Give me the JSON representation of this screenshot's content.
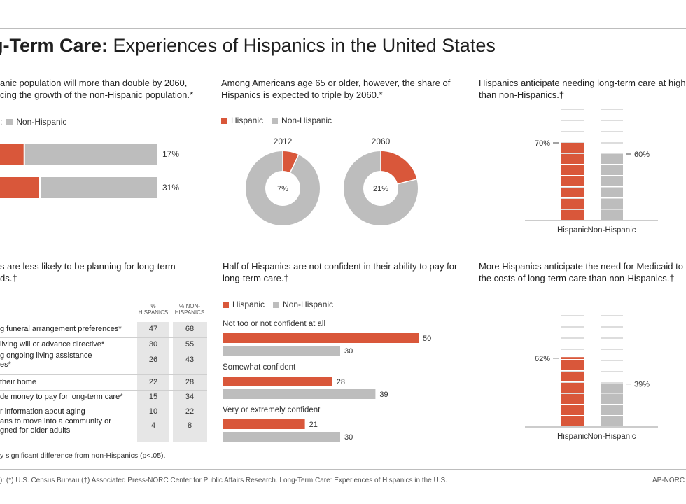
{
  "title": {
    "bold": "g-Term Care:",
    "rest": " Experiences of Hispanics in the United States"
  },
  "colors": {
    "hispanic": "#d9573a",
    "non_hispanic": "#bdbdbd"
  },
  "panel1": {
    "desc": [
      "anic population will more than double by 2060,",
      "cing the growth of the non-Hispanic population.*"
    ],
    "legend_partial": ":",
    "legend_nonhisp": "Non-Hispanic"
  },
  "panel2": {
    "desc": [
      "Among Americans age 65 or older, however, the share of",
      "Hispanics is expected to triple by 2060.*"
    ],
    "legend_hisp": "Hispanic",
    "legend_nonhisp": "Non-Hispanic"
  },
  "panel3": {
    "desc": [
      "Hispanics anticipate needing long-term care at highe",
      "than non-Hispanics.†"
    ]
  },
  "panel4": {
    "desc": [
      "s are less likely to be planning for long-term",
      "ds.†"
    ],
    "col1": [
      "%",
      "HISPANICS"
    ],
    "col2": [
      "% NON-",
      "HISPANICS"
    ],
    "rows": [
      {
        "text": [
          "g funeral arrangement preferences*"
        ],
        "h": "47",
        "n": "68"
      },
      {
        "text": [
          "living will or advance directive*"
        ],
        "h": "30",
        "n": "55"
      },
      {
        "text": [
          "g ongoing living assistance",
          "es*"
        ],
        "h": "26",
        "n": "43"
      },
      {
        "text": [
          "their home"
        ],
        "h": "22",
        "n": "28"
      },
      {
        "text": [
          "de money to pay for long-term care*"
        ],
        "h": "15",
        "n": "34"
      },
      {
        "text": [
          "r information about aging"
        ],
        "h": "10",
        "n": "22"
      },
      {
        "text": [
          "ans to move into a community or",
          "gned for older adults"
        ],
        "h": "4",
        "n": "8"
      }
    ],
    "note": "y significant difference from non-Hispanics (p<.05)."
  },
  "panel5": {
    "desc": [
      "Half of Hispanics are not confident in their ability to pay for",
      "long-term care.†"
    ],
    "legend_hisp": "Hispanic",
    "legend_nonhisp": "Non-Hispanic"
  },
  "panel6": {
    "desc": [
      "More Hispanics anticipate the need for Medicaid to c",
      "the costs of long-term care than non-Hispanics.†"
    ]
  },
  "footer": {
    "source": "): (*) U.S. Census Bureau   (†) Associated Press-NORC Center for Public Affairs Research. Long-Term Care: Experiences of Hispanics in the U.S.",
    "credit": "AP-NORC"
  },
  "chart_data": [
    {
      "type": "bar",
      "orientation": "horizontal",
      "stacked": true,
      "note": "Hispanic share of U.S. population (Hispanic segment partially cropped)",
      "series": [
        {
          "name": "Hispanic",
          "values": [
            17,
            31
          ]
        }
      ],
      "value_labels": [
        "17%",
        "31%"
      ]
    },
    {
      "type": "pie",
      "donut": true,
      "title": "2012",
      "slices": [
        {
          "name": "Hispanic",
          "value": 7
        },
        {
          "name": "Non-Hispanic",
          "value": 93
        }
      ],
      "center_label": "7%"
    },
    {
      "type": "pie",
      "donut": true,
      "title": "2060",
      "slices": [
        {
          "name": "Hispanic",
          "value": 21
        },
        {
          "name": "Non-Hispanic",
          "value": 79
        }
      ],
      "center_label": "21%"
    },
    {
      "type": "bar",
      "categories": [
        "Hispanic",
        "Non-Hispanic"
      ],
      "values": [
        70,
        60
      ],
      "value_labels": [
        "70%",
        "60%"
      ],
      "ylim": [
        0,
        100
      ]
    },
    {
      "type": "table",
      "columns": [
        "% HISPANICS",
        "% NON-HISPANICS"
      ],
      "rows_values": [
        [
          47,
          68
        ],
        [
          30,
          55
        ],
        [
          26,
          43
        ],
        [
          22,
          28
        ],
        [
          15,
          34
        ],
        [
          10,
          22
        ],
        [
          4,
          8
        ]
      ]
    },
    {
      "type": "bar",
      "orientation": "horizontal",
      "categories": [
        "Not too or not confident at all",
        "Somewhat confident",
        "Very or extremely confident"
      ],
      "series": [
        {
          "name": "Hispanic",
          "values": [
            50,
            28,
            21
          ]
        },
        {
          "name": "Non-Hispanic",
          "values": [
            30,
            39,
            30
          ]
        }
      ]
    },
    {
      "type": "bar",
      "categories": [
        "Hispanic",
        "Non-Hispanic"
      ],
      "values": [
        62,
        39
      ],
      "value_labels": [
        "62%",
        "39%"
      ],
      "ylim": [
        0,
        100
      ]
    }
  ]
}
